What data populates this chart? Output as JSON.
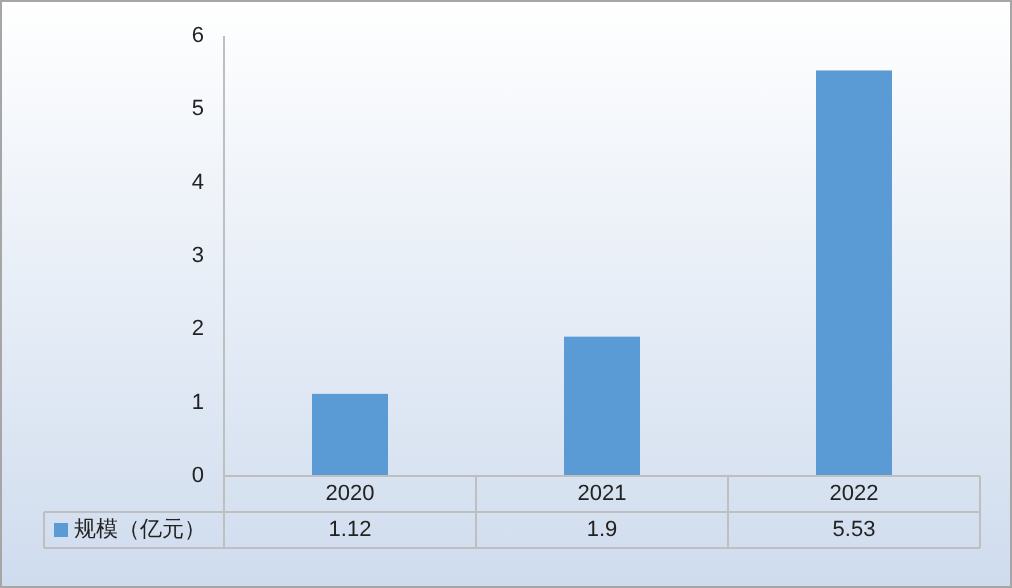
{
  "chart_data": {
    "type": "bar",
    "categories": [
      "2020",
      "2021",
      "2022"
    ],
    "series": [
      {
        "name": "规模（亿元）",
        "color": "#5b9bd5",
        "values": [
          1.12,
          1.9,
          5.53
        ]
      }
    ],
    "ylim": [
      0,
      6
    ],
    "yticks": [
      0,
      1,
      2,
      3,
      4,
      5,
      6
    ],
    "data_labels": true,
    "legend": "bottom",
    "grid": false
  }
}
